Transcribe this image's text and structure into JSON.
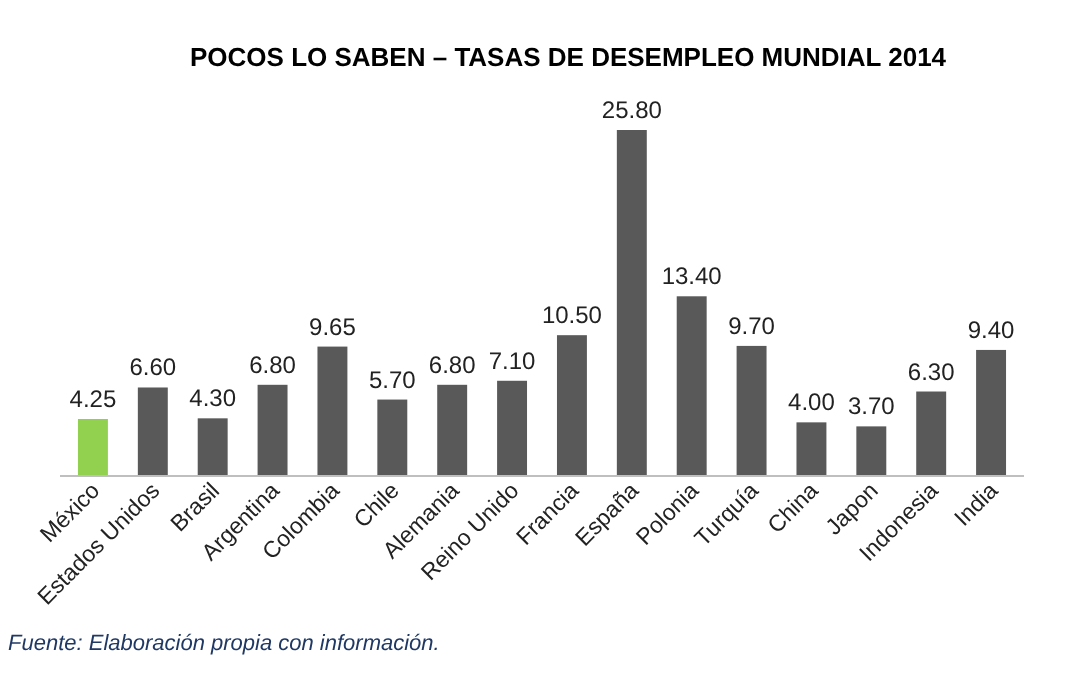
{
  "chart_data": {
    "type": "bar",
    "title": "POCOS LO SABEN – TASAS DE DESEMPLEO MUNDIAL 2014",
    "categories": [
      "México",
      "Estados Unidos",
      "Brasil",
      "Argentina",
      "Colombia",
      "Chile",
      "Alemania",
      "Reino Unido",
      "Francia",
      "España",
      "Polonia",
      "Turquía",
      "China",
      "Japon",
      "Indonesia",
      "India"
    ],
    "values": [
      4.25,
      6.6,
      4.3,
      6.8,
      9.65,
      5.7,
      6.8,
      7.1,
      10.5,
      25.8,
      13.4,
      9.7,
      4.0,
      3.7,
      6.3,
      9.4
    ],
    "value_labels": [
      "4.25",
      "6.60",
      "4.30",
      "6.80",
      "9.65",
      "5.70",
      "6.80",
      "7.10",
      "10.50",
      "25.80",
      "13.40",
      "9.70",
      "4.00",
      "3.70",
      "6.30",
      "9.40"
    ],
    "colors": [
      "#92d050",
      "#595959",
      "#595959",
      "#595959",
      "#595959",
      "#595959",
      "#595959",
      "#595959",
      "#595959",
      "#595959",
      "#595959",
      "#595959",
      "#595959",
      "#595959",
      "#595959",
      "#595959"
    ],
    "annotations": [
      "Fuente: Elaboración propia con información."
    ]
  }
}
